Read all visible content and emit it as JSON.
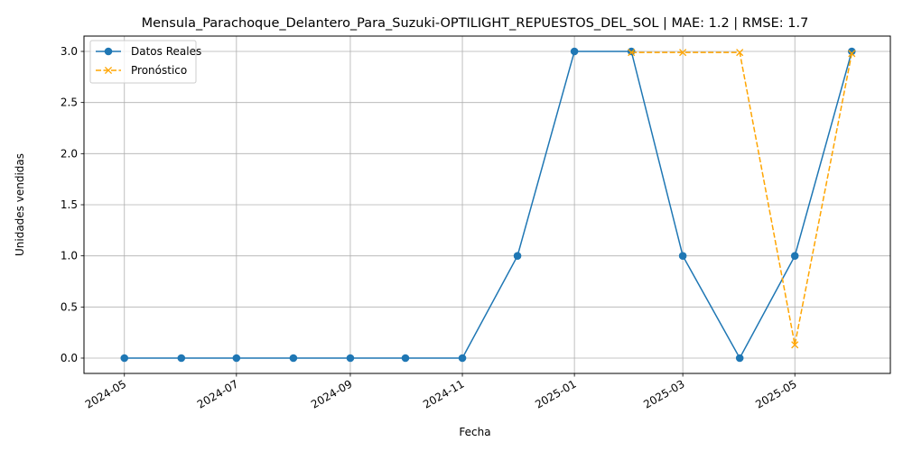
{
  "chart_data": {
    "type": "line",
    "title": "Mensula_Parachoque_Delantero_Para_Suzuki-OPTILIGHT_REPUESTOS_DEL_SOL | MAE: 1.2 | RMSE: 1.7",
    "xlabel": "Fecha",
    "ylabel": "Unidades vendidas",
    "ylim": [
      -0.15,
      3.15
    ],
    "xlim": [
      "2024-04-09",
      "2025-06-22"
    ],
    "x_ticks": [
      "2024-05",
      "2024-07",
      "2024-09",
      "2024-11",
      "2025-01",
      "2025-03",
      "2025-05"
    ],
    "x_tick_dates": [
      "2024-05-01",
      "2024-07-01",
      "2024-09-01",
      "2024-11-01",
      "2025-01-01",
      "2025-03-01",
      "2025-05-01"
    ],
    "y_ticks": [
      "0.0",
      "0.5",
      "1.0",
      "1.5",
      "2.0",
      "2.5",
      "3.0"
    ],
    "grid": true,
    "legend_position": "top-left",
    "series": [
      {
        "name": "Datos Reales",
        "color": "#1f77b4",
        "style": "solid",
        "marker": "circle",
        "x": [
          "2024-05-01",
          "2024-06-01",
          "2024-07-01",
          "2024-08-01",
          "2024-09-01",
          "2024-10-01",
          "2024-11-01",
          "2024-12-01",
          "2025-01-01",
          "2025-02-01",
          "2025-03-01",
          "2025-04-01",
          "2025-05-01",
          "2025-06-01"
        ],
        "values": [
          0,
          0,
          0,
          0,
          0,
          0,
          0,
          1,
          3,
          3,
          1,
          0,
          1,
          3
        ]
      },
      {
        "name": "Pronóstico",
        "color": "#ffa500",
        "style": "dashed",
        "marker": "x",
        "x": [
          "2025-02-01",
          "2025-03-01",
          "2025-04-01",
          "2025-05-01",
          "2025-06-01"
        ],
        "values": [
          2.99,
          2.99,
          2.99,
          0.13,
          2.98
        ]
      }
    ]
  }
}
